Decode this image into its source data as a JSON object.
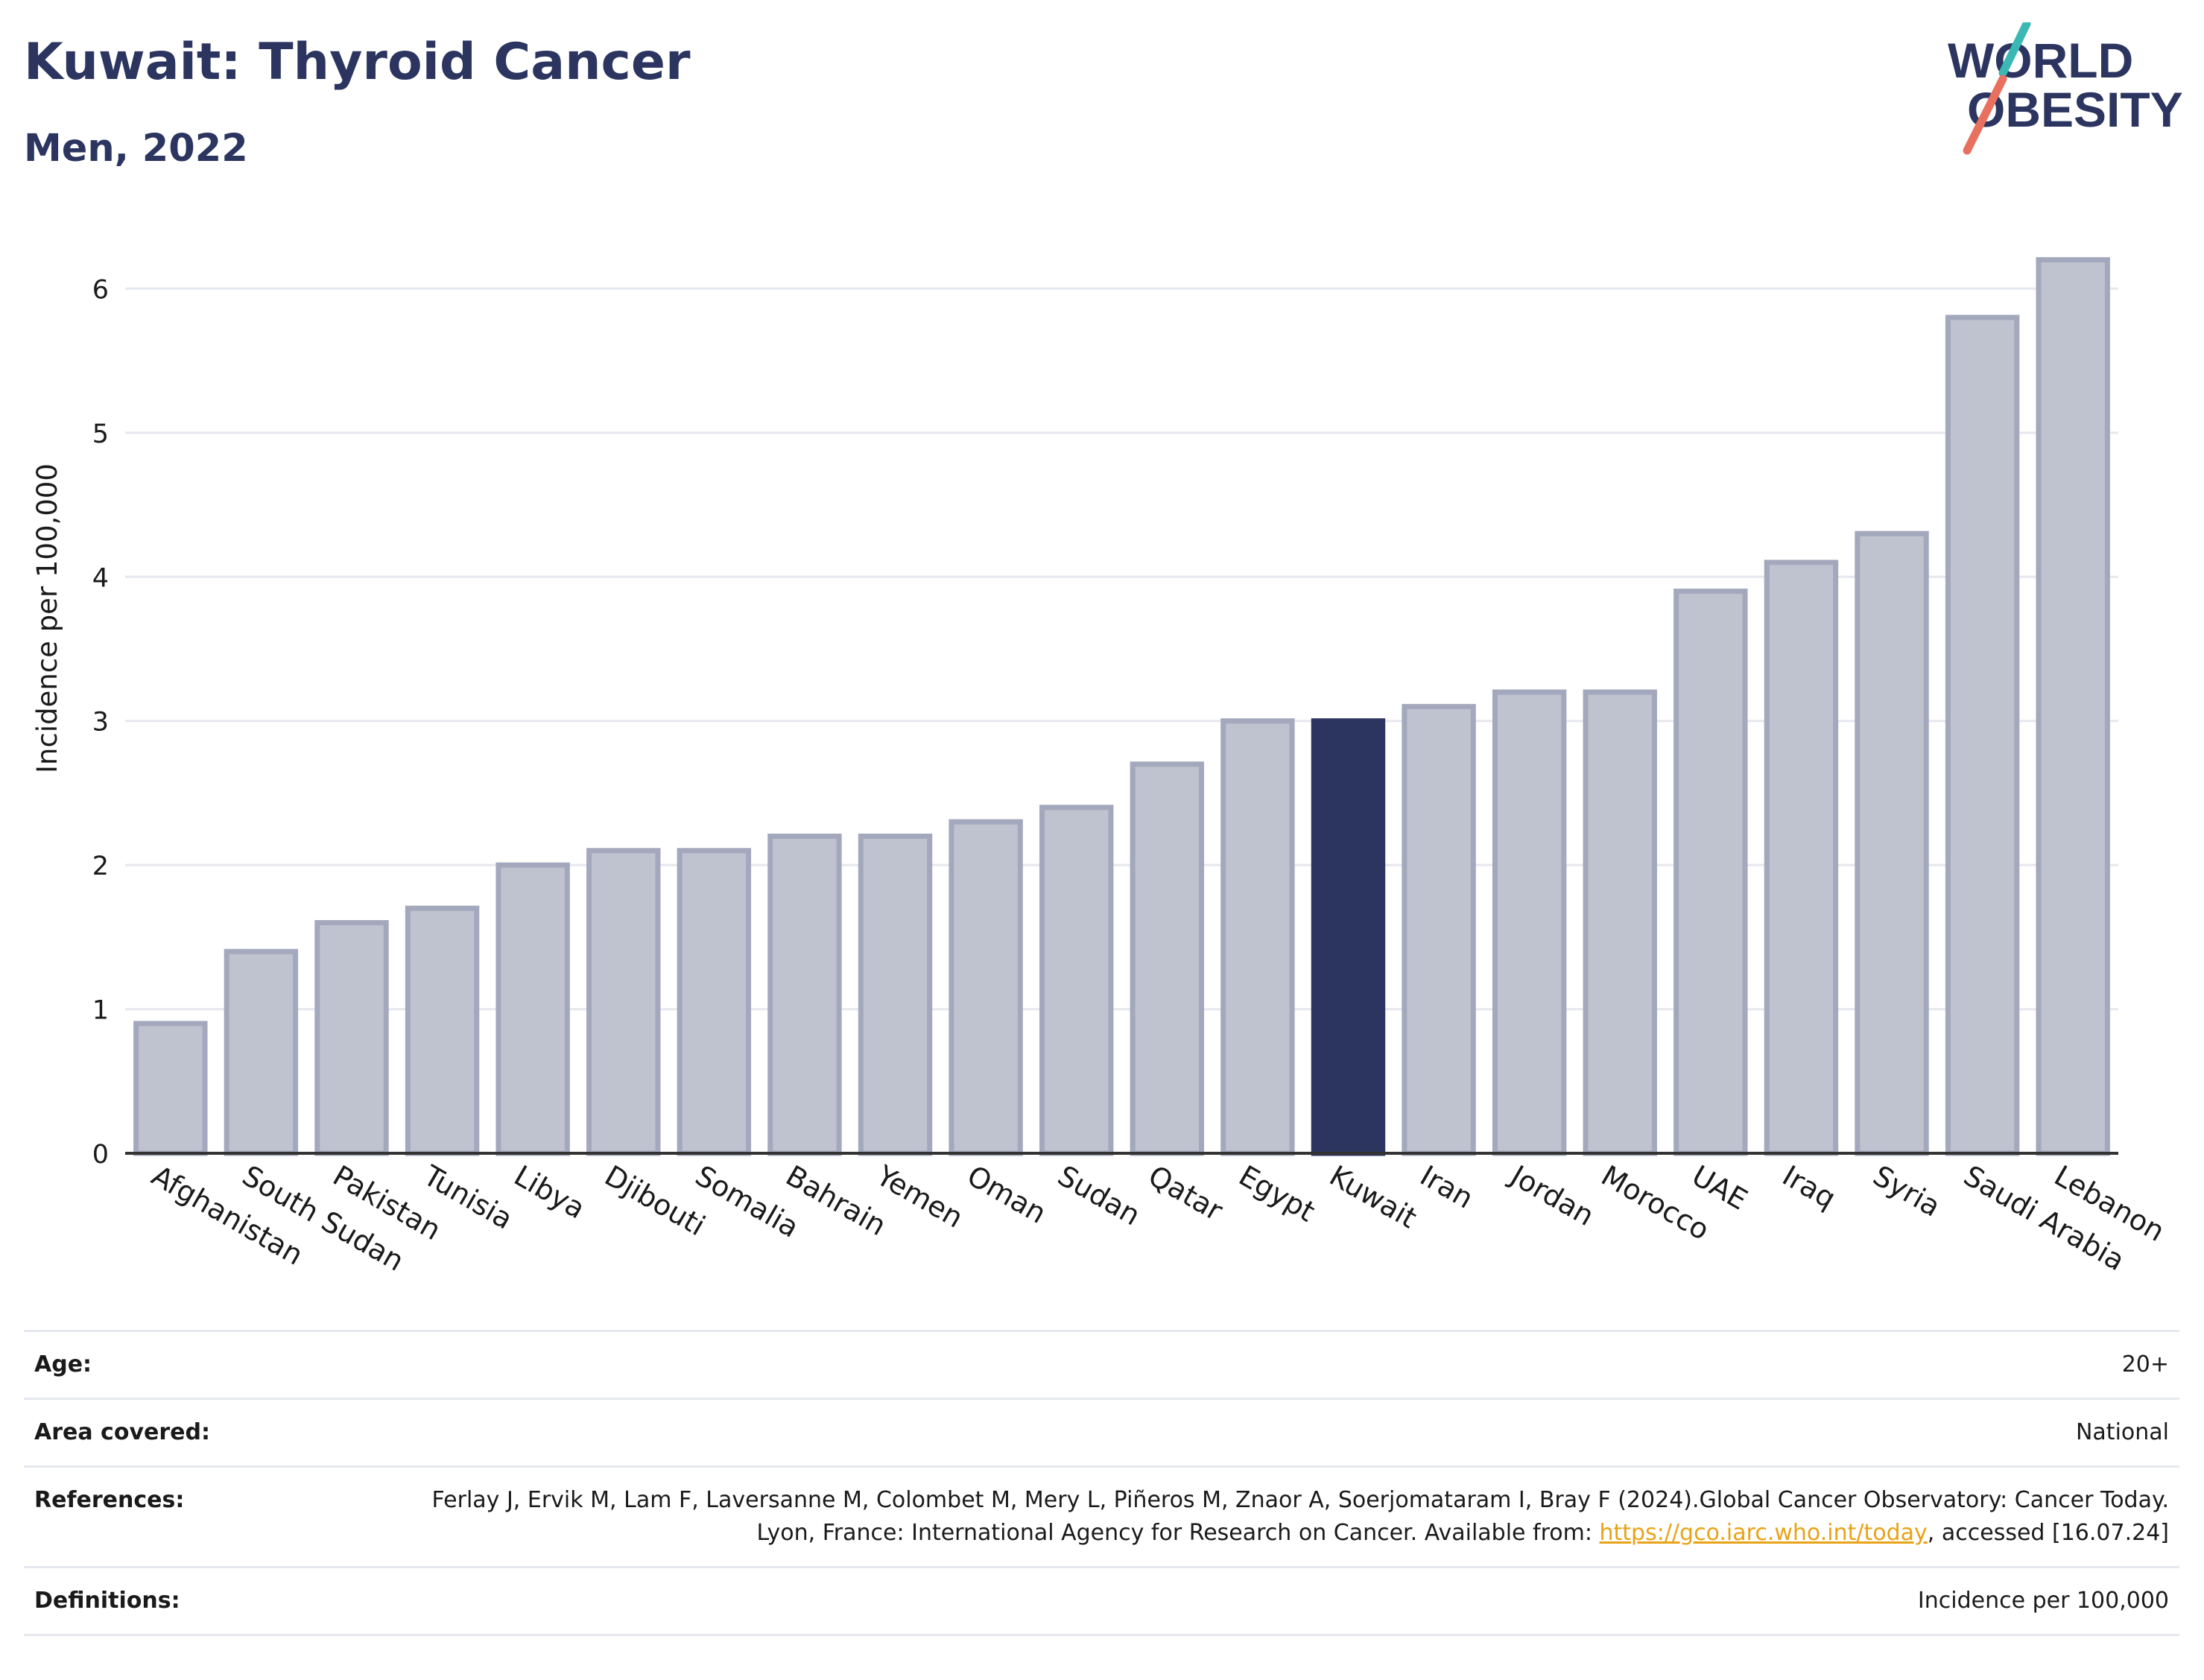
{
  "header": {
    "title": "Kuwait: Thyroid Cancer",
    "subtitle": "Men, 2022",
    "logo_line1": "WORLD",
    "logo_line2": "OBESITY"
  },
  "colors": {
    "title": "#2b3560",
    "bar_default_fill": "#bfc2cf",
    "bar_default_stroke": "#a3a8bd",
    "bar_highlight": "#2b3560",
    "grid": "#e6e8ef",
    "link": "#e8a317",
    "logo_teal": "#3bb8b3",
    "logo_coral": "#e8705f"
  },
  "chart_data": {
    "type": "bar",
    "title": "Kuwait: Thyroid Cancer",
    "subtitle": "Men, 2022",
    "xlabel": "",
    "ylabel": "Incidence per 100,000",
    "ylim": [
      0,
      6.4
    ],
    "yticks": [
      0,
      1,
      2,
      3,
      4,
      5,
      6
    ],
    "grid": true,
    "highlight": "Kuwait",
    "categories": [
      "Afghanistan",
      "South Sudan",
      "Pakistan",
      "Tunisia",
      "Libya",
      "Djibouti",
      "Somalia",
      "Bahrain",
      "Yemen",
      "Oman",
      "Sudan",
      "Qatar",
      "Egypt",
      "Kuwait",
      "Iran",
      "Jordan",
      "Morocco",
      "UAE",
      "Iraq",
      "Syria",
      "Saudi Arabia",
      "Lebanon"
    ],
    "values": [
      0.9,
      1.4,
      1.6,
      1.7,
      2.0,
      2.1,
      2.1,
      2.2,
      2.2,
      2.3,
      2.4,
      2.7,
      3.0,
      3.0,
      3.1,
      3.2,
      3.2,
      3.9,
      4.1,
      4.3,
      5.8,
      6.2
    ]
  },
  "info": {
    "age_label": "Age:",
    "age_value": "20+",
    "area_label": "Area covered:",
    "area_value": "National",
    "references_label": "References:",
    "references_text_1": "Ferlay J, Ervik M, Lam F, Laversanne M, Colombet M, Mery L, Piñeros M, Znaor A, Soerjomataram I, Bray F (2024).Global Cancer Observatory: Cancer Today. Lyon, France: International Agency for Research on Cancer. Available from: ",
    "references_link": "https://gco.iarc.who.int/today",
    "references_text_2": ", accessed [16.07.24]",
    "definitions_label": "Definitions:",
    "definitions_value": "Incidence per 100,000"
  }
}
